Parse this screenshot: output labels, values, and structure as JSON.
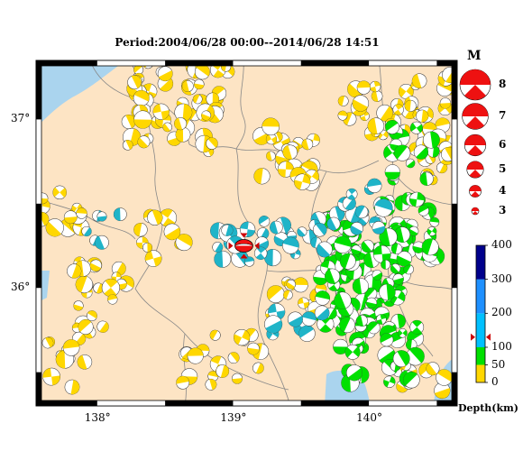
{
  "title": "Period:2004/06/28 00:00--2014/06/28 14:51",
  "axes": {
    "lon_ticks": [
      {
        "value": 138.0,
        "label": "138°"
      },
      {
        "value": 139.0,
        "label": "139°"
      },
      {
        "value": 140.0,
        "label": "140°"
      }
    ],
    "lat_ticks": [
      {
        "value": 37.0,
        "label": "37°"
      },
      {
        "value": 36.0,
        "label": "36°"
      }
    ],
    "lon_range": [
      137.55,
      140.65
    ],
    "lat_range": [
      35.3,
      37.35
    ]
  },
  "magnitude_legend": {
    "title": "M",
    "items": [
      {
        "mag": 8,
        "label": "8"
      },
      {
        "mag": 7,
        "label": "7"
      },
      {
        "mag": 6,
        "label": "6"
      },
      {
        "mag": 5,
        "label": "5"
      },
      {
        "mag": 4,
        "label": "4"
      },
      {
        "mag": 3,
        "label": "3"
      }
    ]
  },
  "depth_legend": {
    "title": "Depth(km)",
    "ticks": [
      {
        "value": 400,
        "label": "400"
      },
      {
        "value": 300,
        "label": "300"
      },
      {
        "value": 200,
        "label": "200"
      },
      {
        "value": 100,
        "label": "100"
      },
      {
        "value": 50,
        "label": "50"
      },
      {
        "value": 0,
        "label": "0"
      }
    ],
    "bands": [
      {
        "from": 0,
        "to": 50,
        "color": "#ffd700"
      },
      {
        "from": 50,
        "to": 100,
        "color": "#00e000"
      },
      {
        "from": 100,
        "to": 200,
        "color": "#00c0ff"
      },
      {
        "from": 200,
        "to": 300,
        "color": "#1e90ff"
      },
      {
        "from": 300,
        "to": 400,
        "color": "#00008b"
      }
    ],
    "marker_depth": 130
  },
  "colors": {
    "land": "#fde4c4",
    "sea": "#aad4ee",
    "border": "#888888",
    "shallow": "#ffd700",
    "mid": "#00e000",
    "deep": "#1fb4c8",
    "main_shock": "#ee1111"
  },
  "main_event": {
    "lon": 139.08,
    "lat": 36.25,
    "mag": 6.0
  }
}
